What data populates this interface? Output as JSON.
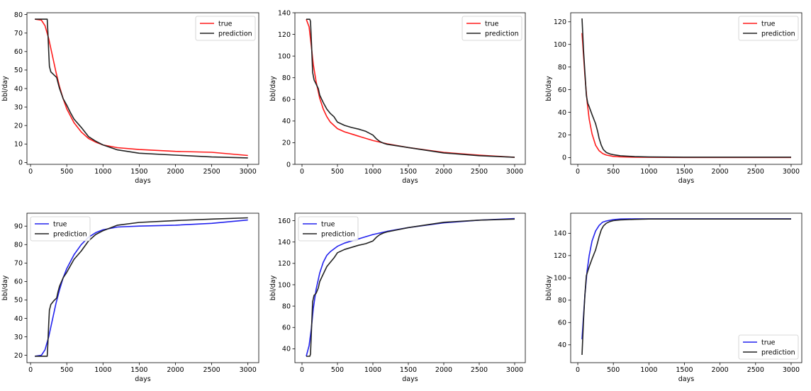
{
  "chart_data": [
    {
      "type": "line",
      "xlabel": "days",
      "ylabel": "bbl/day",
      "xlim": [
        -50,
        3150
      ],
      "ylim": [
        -1,
        81
      ],
      "xticks": [
        0,
        500,
        1000,
        1500,
        2000,
        2500,
        3000
      ],
      "yticks": [
        0,
        10,
        20,
        30,
        40,
        50,
        60,
        70,
        80
      ],
      "legend": "top-right",
      "grid": false,
      "series": [
        {
          "name": "true",
          "color": "#ff1a1a",
          "x": [
            60,
            150,
            200,
            250,
            300,
            350,
            400,
            450,
            500,
            600,
            700,
            800,
            900,
            1000,
            1200,
            1500,
            2000,
            2500,
            3000
          ],
          "y": [
            77.5,
            77.0,
            74.0,
            67.0,
            58.0,
            49.0,
            41.0,
            34.5,
            29.0,
            21.5,
            16.5,
            13.0,
            11.0,
            9.5,
            8.0,
            7.0,
            6.0,
            5.5,
            3.8
          ]
        },
        {
          "name": "prediction",
          "color": "#222222",
          "x": [
            60,
            150,
            230,
            240,
            250,
            260,
            280,
            320,
            360,
            380,
            400,
            450,
            500,
            550,
            600,
            700,
            800,
            900,
            1000,
            1200,
            1500,
            2000,
            2500,
            3000
          ],
          "y": [
            77.5,
            77.5,
            77.5,
            70.0,
            60.0,
            52.0,
            49.0,
            47.5,
            46.0,
            43.0,
            40.0,
            34.5,
            31.0,
            27.0,
            23.5,
            19.0,
            14.0,
            11.5,
            9.5,
            6.8,
            5.0,
            4.0,
            3.0,
            2.5
          ]
        }
      ]
    },
    {
      "type": "line",
      "xlabel": "days",
      "ylabel": "bbl/day",
      "xlim": [
        -100,
        3150
      ],
      "ylim": [
        0,
        140
      ],
      "xticks": [
        0,
        500,
        1000,
        1500,
        2000,
        2500,
        3000
      ],
      "yticks": [
        0,
        20,
        40,
        60,
        80,
        100,
        120,
        140
      ],
      "legend": "top-right",
      "grid": false,
      "series": [
        {
          "name": "true",
          "color": "#ff1a1a",
          "x": [
            60,
            100,
            130,
            160,
            200,
            250,
            300,
            350,
            400,
            500,
            600,
            700,
            800,
            1000,
            1200,
            1500,
            2000,
            2500,
            3000
          ],
          "y": [
            134,
            127,
            110,
            92,
            76,
            61,
            51,
            44,
            39,
            33,
            30,
            28,
            26,
            22,
            19,
            15.5,
            11,
            8.5,
            6.5
          ]
        },
        {
          "name": "prediction",
          "color": "#222222",
          "x": [
            60,
            110,
            120,
            135,
            150,
            170,
            200,
            230,
            250,
            300,
            350,
            400,
            450,
            500,
            600,
            700,
            800,
            900,
            1000,
            1050,
            1100,
            1150,
            1200,
            1500,
            2000,
            2500,
            3000
          ],
          "y": [
            134,
            134,
            132,
            110,
            85,
            78,
            74,
            70,
            64,
            57,
            51,
            47,
            44,
            39,
            36,
            34,
            32.5,
            30.5,
            27,
            23.5,
            21,
            19.5,
            18.5,
            15.5,
            10.5,
            8,
            6.5
          ]
        }
      ]
    },
    {
      "type": "line",
      "xlabel": "days",
      "ylabel": "bbl/day",
      "xlim": [
        -100,
        3150
      ],
      "ylim": [
        -6,
        128
      ],
      "xticks": [
        0,
        500,
        1000,
        1500,
        2000,
        2500,
        3000
      ],
      "yticks": [
        0,
        20,
        40,
        60,
        80,
        100,
        120
      ],
      "legend": "top-right",
      "grid": false,
      "series": [
        {
          "name": "true",
          "color": "#ff1a1a",
          "x": [
            60,
            100,
            130,
            160,
            200,
            250,
            300,
            350,
            400,
            500,
            600,
            800,
            1000,
            1500,
            2000,
            2500,
            3000
          ],
          "y": [
            110,
            72,
            50,
            34,
            21,
            11,
            6,
            3.5,
            2.2,
            1.0,
            0.6,
            0.3,
            0.2,
            0.1,
            0.1,
            0.1,
            0.1
          ]
        },
        {
          "name": "prediction",
          "color": "#222222",
          "x": [
            60,
            80,
            100,
            120,
            140,
            160,
            200,
            250,
            280,
            300,
            330,
            360,
            400,
            450,
            500,
            600,
            800,
            1000,
            1500,
            2000,
            2500,
            3000
          ],
          "y": [
            123,
            95,
            75,
            55,
            48,
            45,
            38,
            30,
            23,
            17,
            11,
            7,
            4.5,
            3.2,
            2.5,
            1.6,
            0.8,
            0.5,
            0.3,
            0.3,
            0.3,
            0.3
          ]
        }
      ]
    },
    {
      "type": "line",
      "xlabel": "days",
      "ylabel": "bbl/day",
      "xlim": [
        -50,
        3150
      ],
      "ylim": [
        16,
        97
      ],
      "xticks": [
        0,
        500,
        1000,
        1500,
        2000,
        2500,
        3000
      ],
      "yticks": [
        20,
        30,
        40,
        50,
        60,
        70,
        80,
        90
      ],
      "legend": "top-left",
      "grid": false,
      "series": [
        {
          "name": "true",
          "color": "#2222ee",
          "x": [
            60,
            150,
            200,
            250,
            300,
            350,
            400,
            450,
            500,
            600,
            700,
            800,
            900,
            1000,
            1200,
            1500,
            2000,
            2500,
            3000
          ],
          "y": [
            19.5,
            20,
            23,
            30,
            39,
            48,
            55.5,
            62,
            67,
            74.5,
            80,
            84,
            86.5,
            88,
            89.5,
            90,
            90.5,
            91.5,
            93.3
          ]
        },
        {
          "name": "prediction",
          "color": "#222222",
          "x": [
            60,
            150,
            230,
            240,
            250,
            260,
            280,
            320,
            360,
            380,
            400,
            450,
            500,
            550,
            600,
            700,
            800,
            900,
            1000,
            1200,
            1500,
            2000,
            2500,
            3000
          ],
          "y": [
            19.5,
            19.5,
            19.5,
            27,
            37,
            44.5,
            47.5,
            49.5,
            51,
            54.5,
            57.5,
            62,
            65,
            68.5,
            72,
            76.5,
            82,
            85.5,
            87.5,
            90.5,
            92,
            93,
            93.8,
            94.5
          ]
        }
      ]
    },
    {
      "type": "line",
      "xlabel": "days",
      "ylabel": "bbl/day",
      "xlim": [
        -100,
        3150
      ],
      "ylim": [
        27,
        167
      ],
      "xticks": [
        0,
        500,
        1000,
        1500,
        2000,
        2500,
        3000
      ],
      "yticks": [
        40,
        60,
        80,
        100,
        120,
        140,
        160
      ],
      "legend": "top-left",
      "grid": false,
      "series": [
        {
          "name": "true",
          "color": "#2222ee",
          "x": [
            60,
            100,
            130,
            160,
            200,
            250,
            300,
            350,
            400,
            500,
            600,
            700,
            800,
            1000,
            1200,
            1500,
            2000,
            2500,
            3000
          ],
          "y": [
            33,
            43,
            58,
            78,
            96,
            111,
            121,
            127.5,
            131,
            136,
            139,
            141,
            143,
            147,
            150,
            153.5,
            158,
            160.5,
            162
          ]
        },
        {
          "name": "prediction",
          "color": "#222222",
          "x": [
            60,
            110,
            120,
            135,
            150,
            170,
            200,
            230,
            250,
            300,
            350,
            400,
            450,
            500,
            600,
            700,
            800,
            900,
            1000,
            1050,
            1100,
            1150,
            1200,
            1500,
            2000,
            2500,
            3000
          ],
          "y": [
            33,
            33,
            35,
            60,
            84,
            90,
            92,
            97,
            103,
            110,
            117,
            121,
            125,
            130,
            133,
            135,
            137,
            138.5,
            141,
            144.5,
            147,
            148.5,
            149.5,
            153.5,
            158.5,
            160.5,
            161.5
          ]
        }
      ]
    },
    {
      "type": "line",
      "xlabel": "days",
      "ylabel": "bbl/day",
      "xlim": [
        -100,
        3150
      ],
      "ylim": [
        24,
        158
      ],
      "xticks": [
        0,
        500,
        1000,
        1500,
        2000,
        2500,
        3000
      ],
      "yticks": [
        40,
        60,
        80,
        100,
        120,
        140
      ],
      "legend": "bottom-right",
      "grid": false,
      "series": [
        {
          "name": "true",
          "color": "#2222ee",
          "x": [
            60,
            100,
            130,
            160,
            200,
            250,
            300,
            350,
            400,
            500,
            600,
            800,
            1000,
            1500,
            2000,
            2500,
            3000
          ],
          "y": [
            45,
            85,
            106,
            120,
            133,
            142,
            147,
            150,
            151,
            152.3,
            152.8,
            153,
            153,
            153,
            153,
            153,
            153
          ]
        },
        {
          "name": "prediction",
          "color": "#222222",
          "x": [
            60,
            80,
            100,
            120,
            140,
            160,
            200,
            250,
            280,
            300,
            330,
            360,
            400,
            450,
            500,
            600,
            800,
            1000,
            1500,
            2000,
            2500,
            3000
          ],
          "y": [
            31,
            62,
            85,
            102,
            106,
            110,
            117,
            125,
            132,
            137,
            143,
            146.5,
            149,
            150.5,
            151.3,
            152,
            152.5,
            152.8,
            152.8,
            152.8,
            152.8,
            152.8
          ]
        }
      ]
    }
  ]
}
